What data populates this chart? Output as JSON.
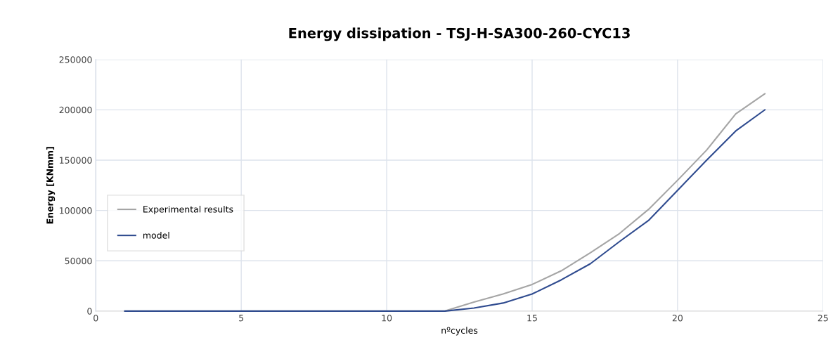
{
  "chart_data": {
    "type": "line",
    "title": "Energy dissipation - TSJ-H-SA300-260-CYC13",
    "xlabel": "nºcycles",
    "ylabel": "Energy [KNmm]",
    "x": [
      1,
      2,
      3,
      4,
      5,
      6,
      7,
      8,
      9,
      10,
      11,
      12,
      13,
      14,
      15,
      16,
      17,
      18,
      19,
      20,
      21,
      22,
      23
    ],
    "series": [
      {
        "name": "Experimental results",
        "color": "#a5a5a5",
        "values": [
          0,
          0,
          0,
          0,
          0,
          0,
          0,
          0,
          0,
          0,
          0,
          0,
          9000,
          17000,
          26500,
          40000,
          58000,
          77000,
          101000,
          130000,
          160000,
          196000,
          216000
        ]
      },
      {
        "name": "model",
        "color": "#2f4b8f",
        "values": [
          0,
          0,
          0,
          0,
          0,
          0,
          0,
          0,
          0,
          0,
          0,
          0,
          3000,
          8000,
          17000,
          31000,
          47000,
          69000,
          90000,
          120000,
          150000,
          179000,
          200000
        ]
      }
    ],
    "xlim": [
      0,
      25
    ],
    "xticks": [
      0,
      5,
      10,
      15,
      20,
      25
    ],
    "ylim": [
      0,
      250000
    ],
    "yticks": [
      0,
      50000,
      100000,
      150000,
      200000,
      250000
    ],
    "grid": true,
    "legend": "left",
    "marker": "none",
    "line_style": "solid"
  }
}
